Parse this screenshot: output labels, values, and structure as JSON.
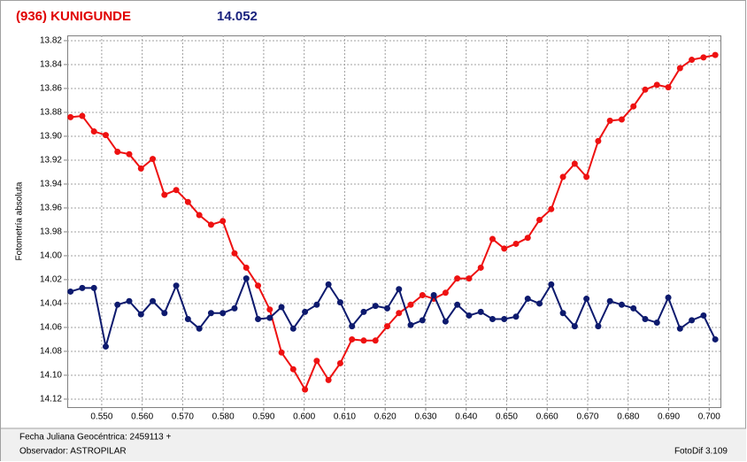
{
  "chart_data": {
    "type": "line",
    "title": "(936) KUNIGUNDE",
    "subtitle": "14.052",
    "ylabel": "Fotometría absoluta",
    "footer_left": [
      "Fecha Juliana Geocéntrica: 2459113 +",
      "Observador: ASTROPILAR"
    ],
    "footer_right": "FotoDif 3.109",
    "title_color": "#e00000",
    "subtitle_color": "#1a237e",
    "xlim": [
      0.5415,
      0.703
    ],
    "ylim": [
      13.8156,
      14.1267
    ],
    "y_inverted": true,
    "grid": true,
    "xticks": [
      {
        "value": 0.55,
        "label": "0.550"
      },
      {
        "value": 0.56,
        "label": "0.560"
      },
      {
        "value": 0.57,
        "label": "0.570"
      },
      {
        "value": 0.58,
        "label": "0.580"
      },
      {
        "value": 0.59,
        "label": "0.590"
      },
      {
        "value": 0.6,
        "label": "0.600"
      },
      {
        "value": 0.61,
        "label": "0.610"
      },
      {
        "value": 0.62,
        "label": "0.620"
      },
      {
        "value": 0.63,
        "label": "0.630"
      },
      {
        "value": 0.64,
        "label": "0.640"
      },
      {
        "value": 0.65,
        "label": "0.650"
      },
      {
        "value": 0.66,
        "label": "0.660"
      },
      {
        "value": 0.67,
        "label": "0.670"
      },
      {
        "value": 0.68,
        "label": "0.680"
      },
      {
        "value": 0.69,
        "label": "0.690"
      },
      {
        "value": 0.7,
        "label": "0.700"
      }
    ],
    "yticks": [
      13.82,
      13.84,
      13.86,
      13.88,
      {
        "value": 13.9,
        "label": "13.90"
      },
      13.92,
      13.94,
      13.96,
      13.98,
      {
        "value": 14.0,
        "label": "14.00"
      },
      14.02,
      14.04,
      14.06,
      14.08,
      {
        "value": 14.1,
        "label": "14.10"
      },
      14.12
    ],
    "x": [
      0.5423,
      0.5452,
      0.5481,
      0.551,
      0.5539,
      0.5568,
      0.5597,
      0.5626,
      0.5655,
      0.5684,
      0.5713,
      0.5741,
      0.577,
      0.5799,
      0.5828,
      0.5857,
      0.5886,
      0.5915,
      0.5944,
      0.5973,
      0.6002,
      0.6031,
      0.606,
      0.6089,
      0.6118,
      0.6147,
      0.6176,
      0.6205,
      0.6234,
      0.6263,
      0.6292,
      0.632,
      0.6349,
      0.6378,
      0.6407,
      0.6436,
      0.6465,
      0.6494,
      0.6523,
      0.6552,
      0.6581,
      0.661,
      0.6639,
      0.6668,
      0.6697,
      0.6726,
      0.6755,
      0.6784,
      0.6813,
      0.6842,
      0.6871,
      0.6899,
      0.6928,
      0.6957,
      0.6986,
      0.7015
    ],
    "series": [
      {
        "color": "#ee1111",
        "values": [
          13.884,
          13.883,
          13.896,
          13.899,
          13.913,
          13.915,
          13.927,
          13.919,
          13.949,
          13.945,
          13.955,
          13.966,
          13.974,
          13.971,
          13.998,
          14.01,
          14.025,
          14.045,
          14.081,
          14.095,
          14.112,
          14.088,
          14.104,
          14.09,
          14.07,
          14.071,
          14.071,
          14.059,
          14.048,
          14.041,
          14.033,
          14.036,
          14.031,
          14.019,
          14.019,
          14.01,
          13.986,
          13.994,
          13.99,
          13.985,
          13.97,
          13.961,
          13.934,
          13.923,
          13.934,
          13.904,
          13.887,
          13.886,
          13.875,
          13.861,
          13.857,
          13.859,
          13.843,
          13.836,
          13.834,
          13.832
        ]
      },
      {
        "color": "#0d1a6e",
        "values": [
          14.03,
          14.027,
          14.027,
          14.076,
          14.041,
          14.038,
          14.049,
          14.038,
          14.048,
          14.025,
          14.053,
          14.061,
          14.048,
          14.048,
          14.044,
          14.019,
          14.053,
          14.052,
          14.043,
          14.061,
          14.047,
          14.041,
          14.024,
          14.039,
          14.059,
          14.047,
          14.042,
          14.044,
          14.028,
          14.058,
          14.054,
          14.033,
          14.055,
          14.041,
          14.05,
          14.047,
          14.053,
          14.053,
          14.051,
          14.036,
          14.04,
          14.024,
          14.048,
          14.059,
          14.036,
          14.059,
          14.038,
          14.041,
          14.044,
          14.053,
          14.056,
          14.035,
          14.061,
          14.054,
          14.05,
          14.07
        ]
      }
    ]
  }
}
